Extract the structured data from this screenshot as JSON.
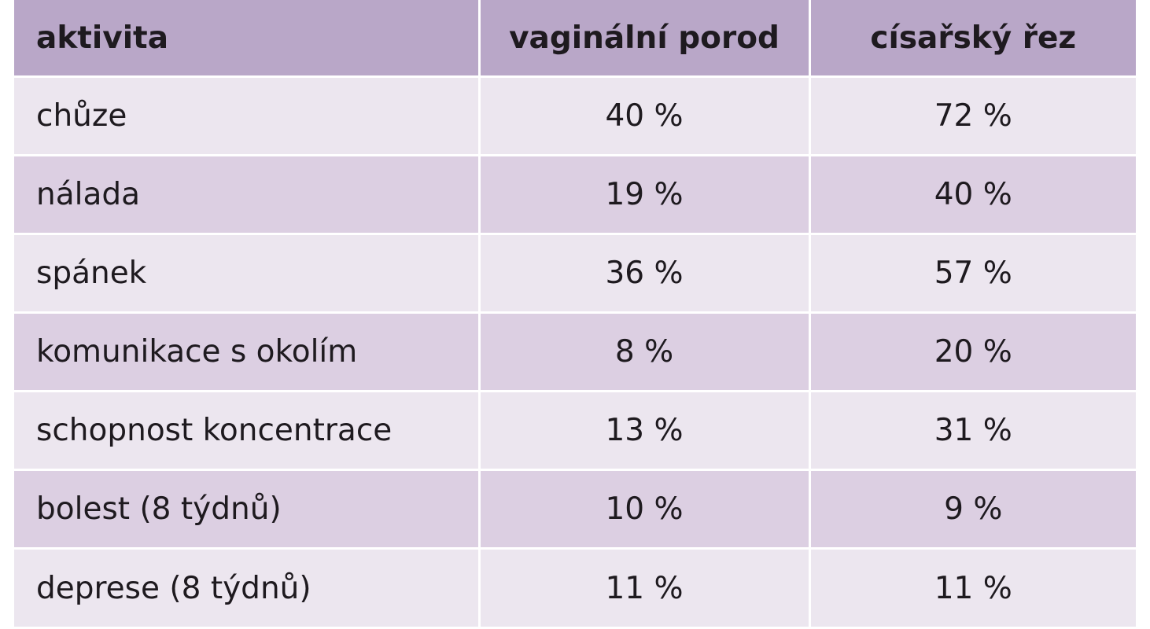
{
  "table": {
    "headers": [
      "aktivita",
      "vaginální porod",
      "císařský řez"
    ],
    "rows": [
      [
        "chůze",
        "40 %",
        "72 %"
      ],
      [
        "nálada",
        "19 %",
        "40 %"
      ],
      [
        "spánek",
        "36 %",
        "57 %"
      ],
      [
        "komunikace s okolím",
        "8 %",
        "20 %"
      ],
      [
        "schopnost koncentrace",
        "13 %",
        "31 %"
      ],
      [
        "bolest (8 týdnů)",
        "10 %",
        "9 %"
      ],
      [
        "deprese (8 týdnů)",
        "11 %",
        "11 %"
      ]
    ]
  },
  "colors": {
    "header_bg": "#b9a7c8",
    "row_light_bg": "#ece6ef",
    "row_dark_bg": "#dccfe2",
    "text": "#1e1a1f"
  }
}
